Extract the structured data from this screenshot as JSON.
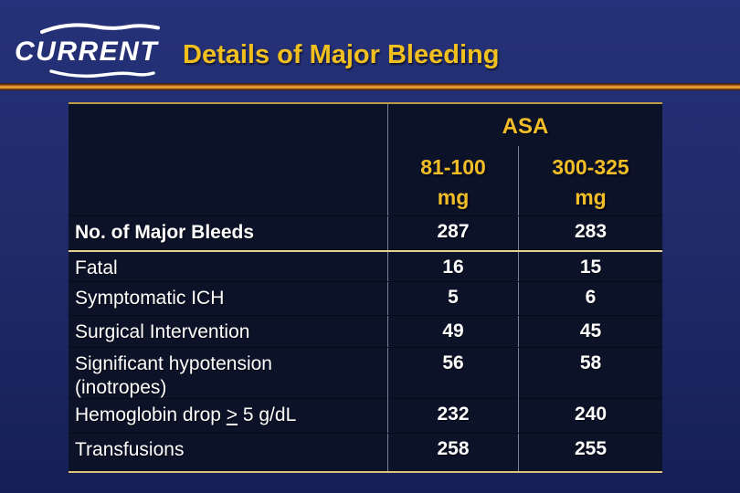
{
  "slide": {
    "logo_text": "CURRENT",
    "title": "Details of Major Bleeding"
  },
  "table": {
    "group_header": "ASA",
    "col_headers": [
      "81-100\nmg",
      "300-325\nmg"
    ],
    "rows": [
      {
        "label": "No. of Major Bleeds",
        "bold": true,
        "values": [
          "287",
          "283"
        ]
      },
      {
        "label": "Fatal",
        "values": [
          "16",
          "15"
        ]
      },
      {
        "label": "Symptomatic ICH",
        "values": [
          "5",
          "6"
        ]
      },
      {
        "label": "Surgical Intervention",
        "values": [
          "49",
          "45"
        ]
      },
      {
        "label": "Significant hypotension\n(inotropes)",
        "values": [
          "56",
          "58"
        ]
      },
      {
        "label_segments": [
          {
            "text": "Hemoglobin drop "
          },
          {
            "text": ">",
            "underline": true
          },
          {
            "text": " 5 g/dL"
          }
        ],
        "values": [
          "232",
          "240"
        ]
      },
      {
        "label": "Transfusions",
        "values": [
          "258",
          "255"
        ]
      }
    ]
  },
  "colors": {
    "background_top": "#263279",
    "background_bottom": "#161f55",
    "table_background": "#0C1228",
    "title_gold": "#F2C01E",
    "header_gold": "#F2BE28",
    "border_gold": "#BD9A44",
    "separator_gold": "#E4D49A",
    "rule_orange": "#E0952A",
    "column_divider_gray": "#79829B",
    "text_white": "#FFFFFF"
  }
}
